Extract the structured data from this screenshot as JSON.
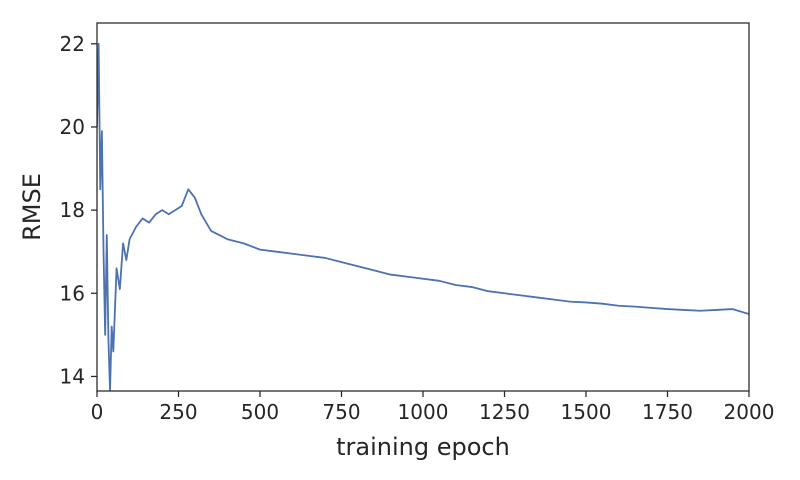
{
  "chart_data": {
    "type": "line",
    "xlabel": "training epoch",
    "ylabel": "RMSE",
    "xlim": [
      0,
      2000
    ],
    "ylim": [
      13.65,
      22.5
    ],
    "x_ticks": [
      0,
      250,
      500,
      750,
      1000,
      1250,
      1500,
      1750,
      2000
    ],
    "y_ticks": [
      14,
      16,
      18,
      20,
      22
    ],
    "grid": false,
    "legend": "none",
    "series_color": "#4c72b0",
    "series": [
      {
        "x": [
          0,
          5,
          10,
          15,
          20,
          25,
          30,
          35,
          40,
          45,
          50,
          60,
          70,
          80,
          90,
          100,
          120,
          140,
          160,
          180,
          200,
          220,
          240,
          260,
          280,
          300,
          320,
          350,
          400,
          450,
          500,
          550,
          600,
          650,
          700,
          750,
          800,
          850,
          900,
          950,
          1000,
          1050,
          1100,
          1150,
          1200,
          1250,
          1300,
          1350,
          1400,
          1450,
          1500,
          1550,
          1600,
          1650,
          1700,
          1750,
          1800,
          1850,
          1900,
          1950,
          2000
        ],
        "y": [
          20.0,
          22.0,
          18.5,
          19.9,
          17.0,
          15.0,
          17.4,
          14.9,
          13.65,
          15.2,
          14.6,
          16.6,
          16.1,
          17.2,
          16.8,
          17.3,
          17.6,
          17.8,
          17.7,
          17.9,
          18.0,
          17.9,
          18.0,
          18.1,
          18.5,
          18.3,
          17.9,
          17.5,
          17.3,
          17.2,
          17.05,
          17.0,
          16.95,
          16.9,
          16.85,
          16.75,
          16.65,
          16.55,
          16.45,
          16.4,
          16.35,
          16.3,
          16.2,
          16.15,
          16.05,
          16.0,
          15.95,
          15.9,
          15.85,
          15.8,
          15.78,
          15.75,
          15.7,
          15.68,
          15.65,
          15.62,
          15.6,
          15.58,
          15.6,
          15.62,
          15.5
        ]
      }
    ]
  }
}
